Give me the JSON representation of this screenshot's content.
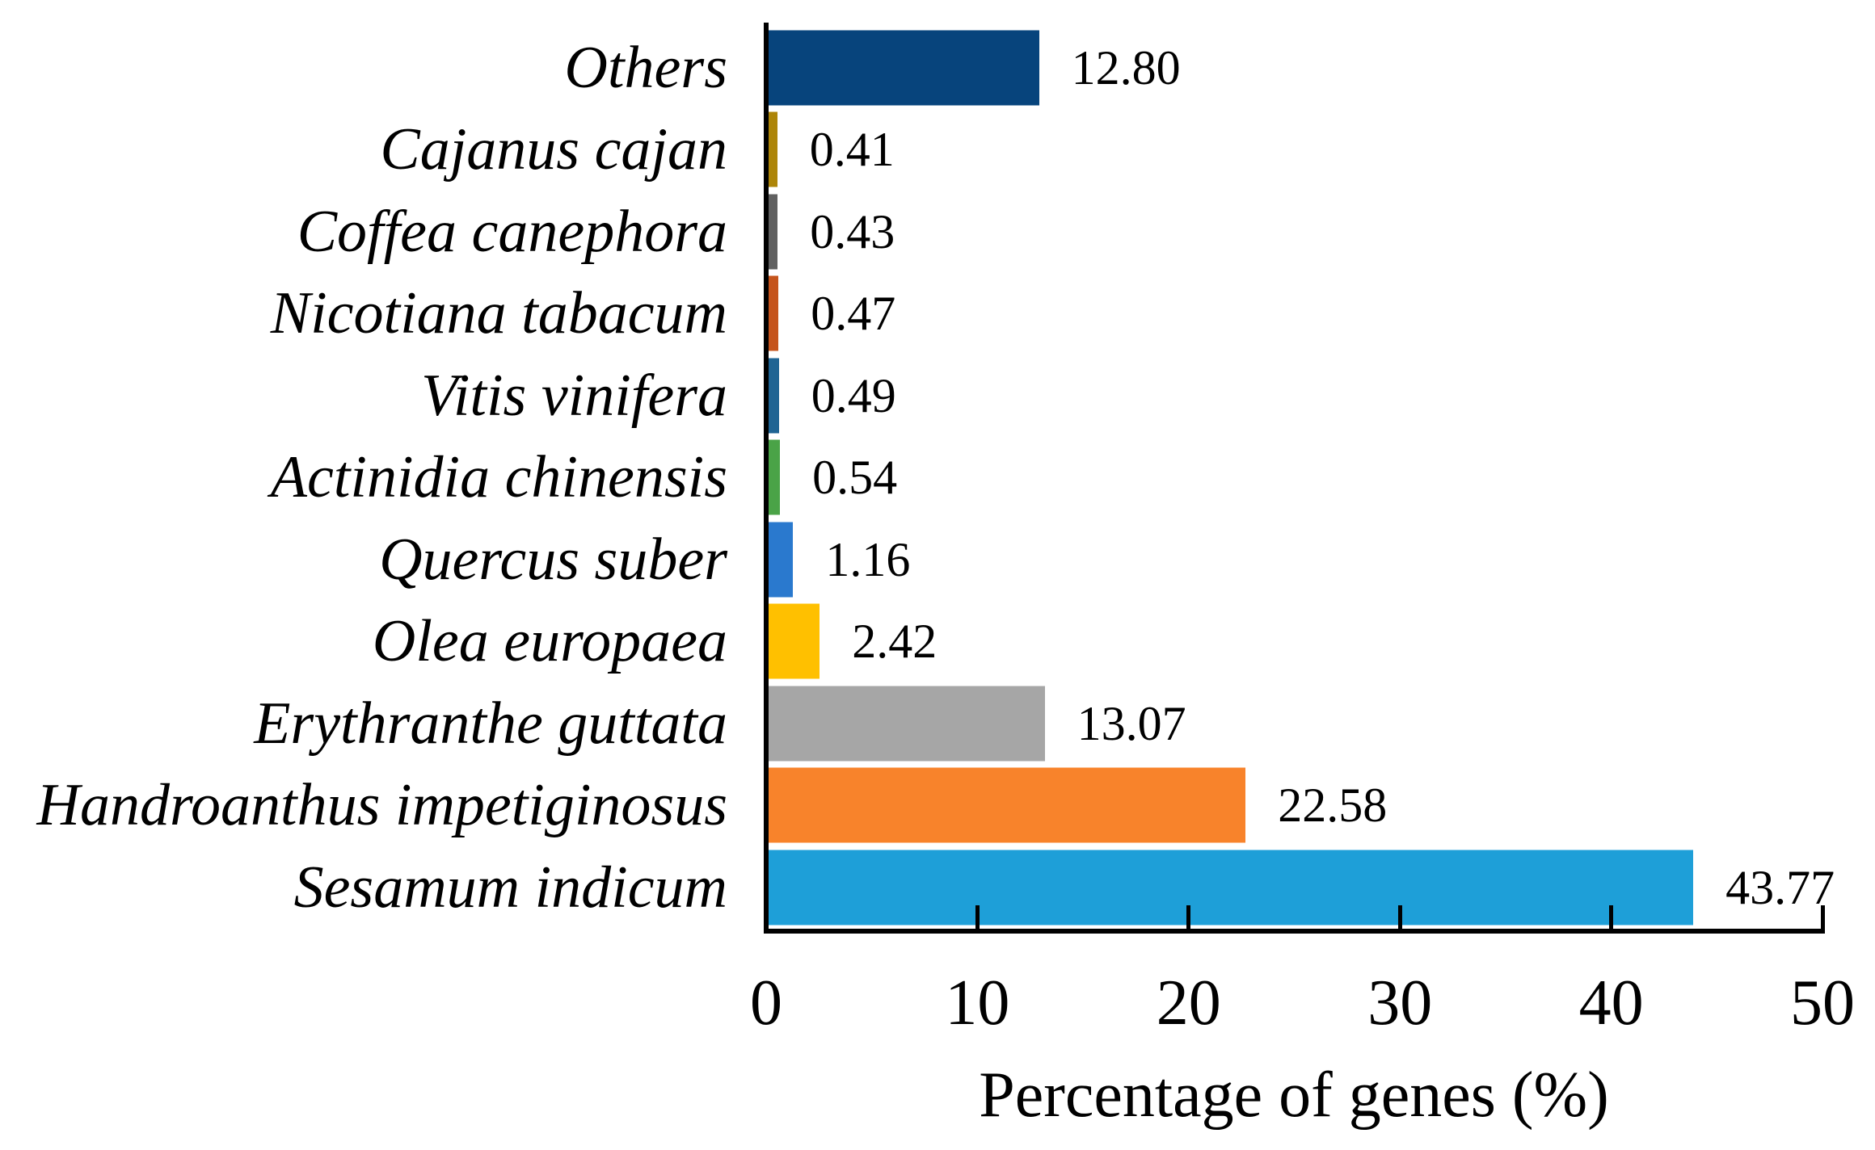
{
  "chart_data": {
    "type": "bar",
    "orientation": "horizontal",
    "title": "",
    "xlabel": "Percentage of genes (%)",
    "ylabel": "",
    "xlim": [
      0,
      50
    ],
    "xticks": [
      "0",
      "10",
      "20",
      "30",
      "40",
      "50"
    ],
    "grid": "off",
    "legend": "none",
    "categories": [
      "Others",
      "Cajanus cajan",
      "Coffea canephora",
      "Nicotiana tabacum",
      "Vitis vinifera",
      "Actinidia chinensis",
      "Quercus suber",
      "Olea europaea",
      "Erythranthe guttata",
      "Handroanthus impetiginosus",
      "Sesamum indicum"
    ],
    "values": [
      12.8,
      0.41,
      0.43,
      0.47,
      0.49,
      0.54,
      1.16,
      2.42,
      13.07,
      22.58,
      43.77
    ],
    "value_labels": [
      "12.80",
      "0.41",
      "0.43",
      "0.47",
      "0.49",
      "0.54",
      "1.16",
      "2.42",
      "13.07",
      "22.58",
      "43.77"
    ],
    "bar_colors": [
      "#07447C",
      "#AD8508",
      "#606060",
      "#C5541C",
      "#1F6493",
      "#4AA347",
      "#2A79CE",
      "#FFC000",
      "#A6A6A6",
      "#F8832B",
      "#1E9FD8"
    ],
    "axis_color": "#000000",
    "text_color": "#000000",
    "background_color": "#FFFFFF"
  }
}
